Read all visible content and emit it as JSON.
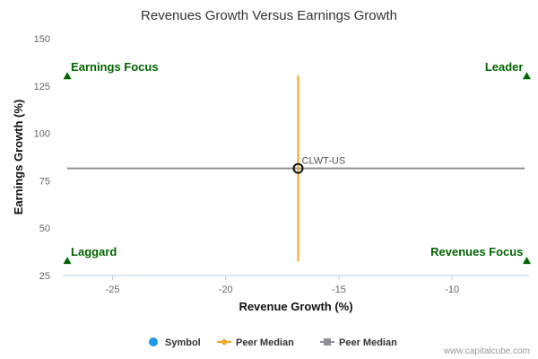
{
  "chart_data": {
    "type": "scatter",
    "title": "Revenues Growth Versus Earnings Growth",
    "xlabel": "Revenue Growth (%)",
    "ylabel": "Earnings Growth (%)",
    "xlim": [
      -27.2,
      -6.6
    ],
    "ylim": [
      25,
      150
    ],
    "xticks": [
      -25,
      -20,
      -15,
      -10
    ],
    "yticks": [
      25,
      50,
      75,
      100,
      125,
      150
    ],
    "symbol": {
      "name": "CLWT-US",
      "x": -16.8,
      "y": 81.5
    },
    "peer_median_vertical": {
      "name": "Peer Median",
      "x": -16.8,
      "y_from": 32.5,
      "y_to": 130.5
    },
    "peer_median_horizontal": {
      "name": "Peer Median",
      "y": 81.5,
      "x_from": -27.2,
      "x_to": -6.6
    },
    "quadrants": [
      {
        "label": "Earnings Focus",
        "x": -27.0,
        "y": 130,
        "anchor": "start"
      },
      {
        "label": "Leader",
        "x": -6.7,
        "y": 130,
        "anchor": "end"
      },
      {
        "label": "Laggard",
        "x": -27.0,
        "y": 32.5,
        "anchor": "start"
      },
      {
        "label": "Revenues Focus",
        "x": -6.7,
        "y": 32.5,
        "anchor": "end"
      }
    ],
    "legend": [
      {
        "label": "Symbol",
        "kind": "circle"
      },
      {
        "label": "Peer Median",
        "kind": "orange-line"
      },
      {
        "label": "Peer Median",
        "kind": "gray-line"
      }
    ],
    "grid": false
  },
  "credit": "www.capitalcube.com",
  "colors": {
    "orange": "#f5a623",
    "gray": "#8f8f96",
    "green": "#006400",
    "symbol_blue": "#1e9be9",
    "axis": "#c0d0e0"
  }
}
